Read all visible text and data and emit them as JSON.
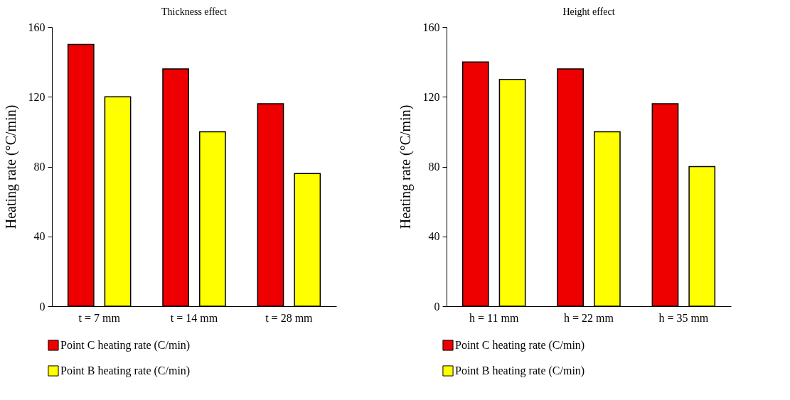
{
  "chart_data": [
    {
      "type": "bar",
      "title": "Thickness effect",
      "ylabel": "Heating rate (°C/min)",
      "categories": [
        "t = 7 mm",
        "t = 14 mm",
        "t = 28 mm"
      ],
      "series": [
        {
          "name": "Point C heating rate (C/min)",
          "color": "#ee0000",
          "values": [
            150,
            136,
            116
          ]
        },
        {
          "name": "Point B heating rate (C/min)",
          "color": "#ffff00",
          "values": [
            120,
            100,
            76
          ]
        }
      ],
      "ylim": [
        0,
        160
      ],
      "yticks": [
        0,
        40,
        80,
        120,
        160
      ],
      "grid": false,
      "legend": "bottom left"
    },
    {
      "type": "bar",
      "title": "Height effect",
      "ylabel": "Heating rate (°C/min)",
      "categories": [
        "h = 11 mm",
        "h = 22 mm",
        "h = 35 mm"
      ],
      "series": [
        {
          "name": "Point C heating rate (C/min)",
          "color": "#ee0000",
          "values": [
            140,
            136,
            116
          ]
        },
        {
          "name": "Point B heating rate (C/min)",
          "color": "#ffff00",
          "values": [
            130,
            100,
            80
          ]
        }
      ],
      "ylim": [
        0,
        160
      ],
      "yticks": [
        0,
        40,
        80,
        120,
        160
      ],
      "grid": false,
      "legend": "bottom left"
    }
  ]
}
